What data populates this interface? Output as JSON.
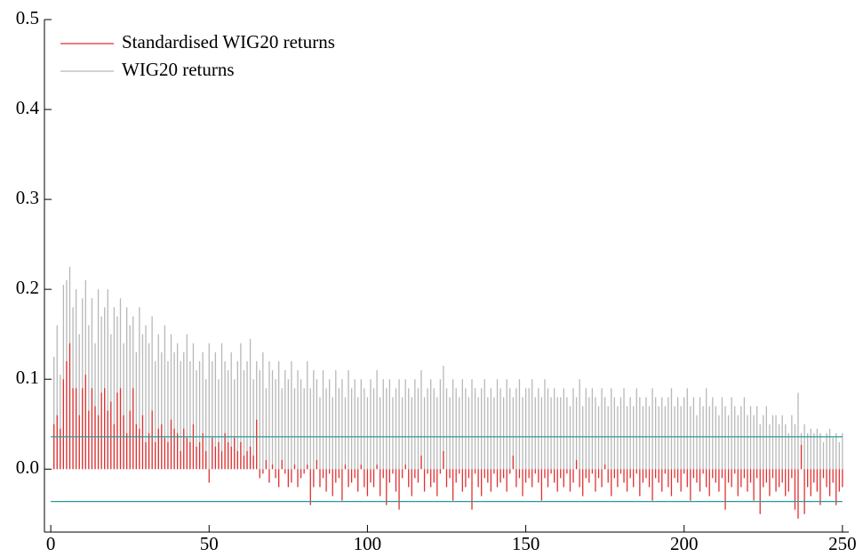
{
  "chart_data": {
    "type": "spike",
    "x": [
      1,
      2,
      3,
      4,
      5,
      6,
      7,
      8,
      9,
      10,
      11,
      12,
      13,
      14,
      15,
      16,
      17,
      18,
      19,
      20,
      21,
      22,
      23,
      24,
      25,
      26,
      27,
      28,
      29,
      30,
      31,
      32,
      33,
      34,
      35,
      36,
      37,
      38,
      39,
      40,
      41,
      42,
      43,
      44,
      45,
      46,
      47,
      48,
      49,
      50,
      51,
      52,
      53,
      54,
      55,
      56,
      57,
      58,
      59,
      60,
      61,
      62,
      63,
      64,
      65,
      66,
      67,
      68,
      69,
      70,
      71,
      72,
      73,
      74,
      75,
      76,
      77,
      78,
      79,
      80,
      81,
      82,
      83,
      84,
      85,
      86,
      87,
      88,
      89,
      90,
      91,
      92,
      93,
      94,
      95,
      96,
      97,
      98,
      99,
      100,
      101,
      102,
      103,
      104,
      105,
      106,
      107,
      108,
      109,
      110,
      111,
      112,
      113,
      114,
      115,
      116,
      117,
      118,
      119,
      120,
      121,
      122,
      123,
      124,
      125,
      126,
      127,
      128,
      129,
      130,
      131,
      132,
      133,
      134,
      135,
      136,
      137,
      138,
      139,
      140,
      141,
      142,
      143,
      144,
      145,
      146,
      147,
      148,
      149,
      150,
      151,
      152,
      153,
      154,
      155,
      156,
      157,
      158,
      159,
      160,
      161,
      162,
      163,
      164,
      165,
      166,
      167,
      168,
      169,
      170,
      171,
      172,
      173,
      174,
      175,
      176,
      177,
      178,
      179,
      180,
      181,
      182,
      183,
      184,
      185,
      186,
      187,
      188,
      189,
      190,
      191,
      192,
      193,
      194,
      195,
      196,
      197,
      198,
      199,
      200,
      201,
      202,
      203,
      204,
      205,
      206,
      207,
      208,
      209,
      210,
      211,
      212,
      213,
      214,
      215,
      216,
      217,
      218,
      219,
      220,
      221,
      222,
      223,
      224,
      225,
      226,
      227,
      228,
      229,
      230,
      231,
      232,
      233,
      234,
      235,
      236,
      237,
      238,
      239,
      240,
      241,
      242,
      243,
      244,
      245,
      246,
      247,
      248,
      249,
      250
    ],
    "series": [
      {
        "name": "WIG20 returns",
        "color": "#b8b8b8",
        "values": [
          0.125,
          0.16,
          0.105,
          0.205,
          0.21,
          0.225,
          0.18,
          0.2,
          0.15,
          0.19,
          0.21,
          0.16,
          0.19,
          0.14,
          0.2,
          0.17,
          0.18,
          0.2,
          0.15,
          0.18,
          0.17,
          0.19,
          0.14,
          0.18,
          0.16,
          0.17,
          0.13,
          0.18,
          0.15,
          0.16,
          0.14,
          0.17,
          0.12,
          0.15,
          0.13,
          0.16,
          0.12,
          0.15,
          0.13,
          0.14,
          0.12,
          0.13,
          0.15,
          0.12,
          0.14,
          0.11,
          0.12,
          0.13,
          0.1,
          0.14,
          0.12,
          0.13,
          0.1,
          0.14,
          0.12,
          0.11,
          0.13,
          0.1,
          0.12,
          0.14,
          0.11,
          0.12,
          0.145,
          0.1,
          0.12,
          0.11,
          0.13,
          0.09,
          0.12,
          0.11,
          0.1,
          0.12,
          0.09,
          0.11,
          0.1,
          0.12,
          0.09,
          0.11,
          0.1,
          0.09,
          0.12,
          0.09,
          0.11,
          0.1,
          0.08,
          0.11,
          0.09,
          0.1,
          0.08,
          0.11,
          0.09,
          0.1,
          0.08,
          0.11,
          0.09,
          0.1,
          0.08,
          0.1,
          0.09,
          0.08,
          0.1,
          0.09,
          0.11,
          0.08,
          0.1,
          0.09,
          0.1,
          0.08,
          0.09,
          0.1,
          0.08,
          0.1,
          0.09,
          0.08,
          0.1,
          0.09,
          0.11,
          0.08,
          0.09,
          0.1,
          0.09,
          0.08,
          0.1,
          0.115,
          0.09,
          0.08,
          0.1,
          0.09,
          0.08,
          0.1,
          0.09,
          0.08,
          0.1,
          0.09,
          0.08,
          0.09,
          0.1,
          0.08,
          0.09,
          0.08,
          0.1,
          0.09,
          0.08,
          0.1,
          0.09,
          0.08,
          0.09,
          0.1,
          0.08,
          0.09,
          0.09,
          0.1,
          0.08,
          0.09,
          0.08,
          0.1,
          0.09,
          0.08,
          0.09,
          0.08,
          0.08,
          0.09,
          0.08,
          0.07,
          0.09,
          0.08,
          0.1,
          0.07,
          0.09,
          0.08,
          0.09,
          0.08,
          0.07,
          0.09,
          0.08,
          0.07,
          0.09,
          0.08,
          0.07,
          0.08,
          0.09,
          0.07,
          0.08,
          0.07,
          0.09,
          0.08,
          0.07,
          0.08,
          0.07,
          0.09,
          0.08,
          0.07,
          0.08,
          0.07,
          0.08,
          0.09,
          0.07,
          0.08,
          0.07,
          0.08,
          0.09,
          0.07,
          0.08,
          0.06,
          0.08,
          0.07,
          0.09,
          0.07,
          0.08,
          0.07,
          0.06,
          0.08,
          0.07,
          0.06,
          0.08,
          0.07,
          0.06,
          0.07,
          0.08,
          0.06,
          0.07,
          0.06,
          0.07,
          0.05,
          0.06,
          0.07,
          0.05,
          0.06,
          0.06,
          0.05,
          0.06,
          0.05,
          0.04,
          0.06,
          0.05,
          0.085,
          0.04,
          0.05,
          0.04,
          0.045,
          0.04,
          0.045,
          0.04,
          0.03,
          0.04,
          0.045,
          0.035,
          0.04,
          0.03,
          0.04
        ]
      },
      {
        "name": "Standardised WIG20 returns",
        "color": "#e03030",
        "values": [
          0.05,
          0.06,
          0.045,
          0.1,
          0.12,
          0.14,
          0.09,
          0.09,
          0.06,
          0.09,
          0.105,
          0.065,
          0.09,
          0.07,
          0.06,
          0.085,
          0.09,
          0.065,
          0.075,
          0.05,
          0.085,
          0.09,
          0.06,
          0.04,
          0.065,
          0.09,
          0.05,
          0.045,
          0.06,
          0.03,
          0.04,
          0.065,
          0.03,
          0.045,
          0.05,
          0.035,
          0.03,
          0.055,
          0.045,
          0.04,
          0.02,
          0.045,
          0.035,
          0.03,
          0.05,
          0.025,
          0.03,
          0.04,
          0.02,
          -0.015,
          0.035,
          0.025,
          0.03,
          0.02,
          0.04,
          0.03,
          0.025,
          0.035,
          0.02,
          0.03,
          0.015,
          0.02,
          0.025,
          0.015,
          0.055,
          -0.01,
          -0.005,
          0.01,
          -0.015,
          0.005,
          -0.01,
          -0.02,
          0.01,
          -0.005,
          -0.02,
          -0.015,
          0.005,
          -0.02,
          -0.01,
          -0.005,
          0.005,
          -0.04,
          -0.02,
          0.01,
          -0.02,
          -0.01,
          -0.025,
          -0.005,
          -0.03,
          -0.015,
          -0.01,
          -0.035,
          0.005,
          -0.02,
          -0.015,
          -0.01,
          -0.025,
          0.005,
          -0.02,
          -0.03,
          -0.015,
          -0.02,
          0.005,
          -0.03,
          -0.01,
          -0.04,
          -0.015,
          -0.005,
          -0.025,
          -0.045,
          -0.01,
          0.005,
          -0.02,
          -0.03,
          -0.01,
          -0.015,
          0.015,
          -0.025,
          -0.005,
          -0.02,
          -0.015,
          -0.03,
          -0.005,
          0.02,
          -0.02,
          -0.01,
          -0.035,
          -0.015,
          -0.005,
          -0.025,
          -0.02,
          -0.01,
          -0.045,
          -0.005,
          -0.02,
          -0.03,
          -0.01,
          -0.015,
          -0.025,
          -0.005,
          -0.02,
          -0.015,
          -0.01,
          -0.025,
          -0.005,
          0.015,
          -0.02,
          -0.01,
          -0.03,
          -0.015,
          -0.01,
          -0.02,
          -0.005,
          -0.015,
          -0.035,
          -0.01,
          -0.02,
          -0.005,
          -0.015,
          -0.025,
          -0.01,
          -0.02,
          -0.005,
          -0.025,
          -0.015,
          0.01,
          -0.02,
          -0.03,
          -0.01,
          -0.015,
          -0.005,
          -0.025,
          -0.01,
          -0.02,
          0.005,
          -0.015,
          -0.03,
          -0.01,
          -0.02,
          -0.005,
          -0.015,
          -0.025,
          -0.01,
          -0.02,
          -0.005,
          -0.03,
          -0.015,
          -0.01,
          -0.02,
          -0.035,
          -0.01,
          -0.015,
          -0.025,
          -0.005,
          -0.02,
          -0.03,
          -0.01,
          -0.015,
          -0.025,
          -0.005,
          -0.02,
          -0.035,
          -0.01,
          -0.015,
          -0.025,
          -0.005,
          -0.02,
          -0.03,
          -0.01,
          -0.015,
          -0.025,
          -0.01,
          -0.045,
          -0.015,
          -0.02,
          -0.005,
          -0.03,
          -0.02,
          -0.01,
          -0.025,
          -0.015,
          -0.035,
          -0.01,
          -0.05,
          -0.02,
          -0.015,
          -0.03,
          -0.01,
          -0.025,
          -0.02,
          -0.015,
          -0.03,
          -0.025,
          -0.01,
          -0.045,
          -0.055,
          0.027,
          -0.05,
          -0.02,
          -0.03,
          -0.015,
          -0.025,
          -0.04,
          -0.01,
          -0.02,
          -0.03,
          -0.015,
          -0.04,
          -0.025,
          -0.02
        ]
      }
    ],
    "legend_order": [
      "Standardised WIG20 returns",
      "WIG20 returns"
    ],
    "hlines": [
      0.036,
      -0.036
    ],
    "hline_color": "#2a9a96",
    "xlim": [
      -2,
      252
    ],
    "xticks": [
      0,
      50,
      100,
      150,
      200,
      250
    ],
    "ylim": [
      -0.07,
      0.5
    ],
    "yticks": [
      {
        "value": 0,
        "label": "0.0"
      },
      {
        "value": 0.1,
        "label": "0.1"
      },
      {
        "value": 0.2,
        "label": "0.2"
      },
      {
        "value": 0.3,
        "label": "0.3"
      },
      {
        "value": 0.4,
        "label": "0.4"
      },
      {
        "value": 0.5,
        "label": "0.5"
      }
    ],
    "legend": "upper left"
  }
}
